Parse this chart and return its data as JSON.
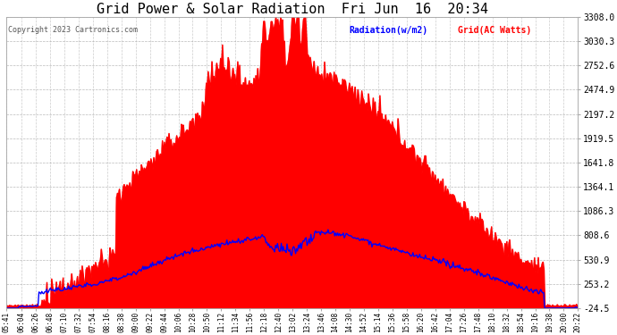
{
  "title": "Grid Power & Solar Radiation  Fri Jun  16  20:34",
  "copyright": "Copyright 2023 Cartronics.com",
  "legend_radiation": "Radiation(w/m2)",
  "legend_grid": "Grid(AC Watts)",
  "bg_color": "#ffffff",
  "plot_bg_color": "#ffffff",
  "grid_color": "#aaaaaa",
  "title_color": "#000000",
  "radiation_color": "#0000ff",
  "grid_ac_color": "#ff0000",
  "grid_ac_fill": "#ff0000",
  "copyright_color": "#555555",
  "ylabel_right_values": [
    3308.0,
    3030.3,
    2752.6,
    2474.9,
    2197.2,
    1919.5,
    1641.8,
    1364.1,
    1086.3,
    808.6,
    530.9,
    253.2,
    -24.5
  ],
  "ymin": -24.5,
  "ymax": 3308.0,
  "x_labels": [
    "05:41",
    "06:04",
    "06:26",
    "06:48",
    "07:10",
    "07:32",
    "07:54",
    "08:16",
    "08:38",
    "09:00",
    "09:22",
    "09:44",
    "10:06",
    "10:28",
    "10:50",
    "11:12",
    "11:34",
    "11:56",
    "12:18",
    "12:40",
    "13:02",
    "13:24",
    "13:46",
    "14:08",
    "14:30",
    "14:52",
    "15:14",
    "15:36",
    "15:58",
    "16:20",
    "16:42",
    "17:04",
    "17:26",
    "17:48",
    "18:10",
    "18:32",
    "18:54",
    "19:16",
    "19:38",
    "20:00",
    "20:22"
  ]
}
